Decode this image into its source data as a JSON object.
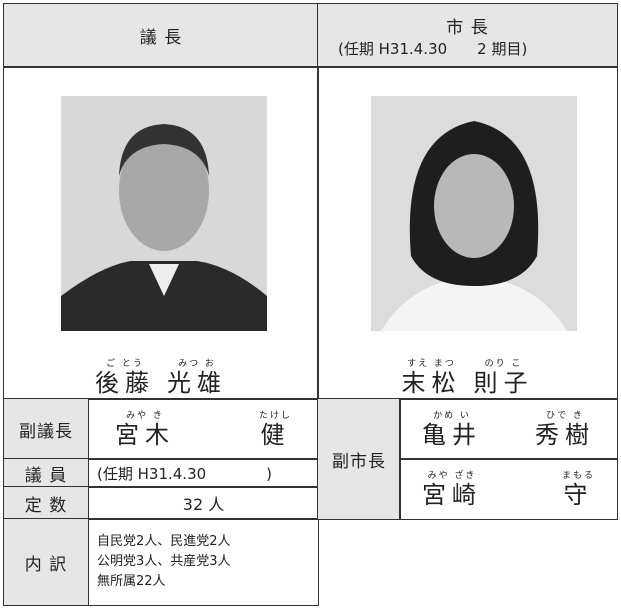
{
  "header": {
    "left": "議 長",
    "right_title": "市 長",
    "right_term": "(任期 H31.4.30　　2 期目)"
  },
  "chair": {
    "family": {
      "text": "後藤",
      "reading": "ご とう"
    },
    "given": {
      "text": "光雄",
      "reading": "みつ お"
    }
  },
  "mayor": {
    "family": {
      "text": "末松",
      "reading": "すえ まつ"
    },
    "given": {
      "text": "則子",
      "reading": "のり こ"
    }
  },
  "vice_chair": {
    "label": "副議長",
    "family": {
      "text": "宮木",
      "reading": "みや き"
    },
    "given": {
      "text": "健",
      "reading": "たけし"
    }
  },
  "members": {
    "label": "議 員",
    "term": "(任期 H31.4.30　　　　)"
  },
  "seats": {
    "label": "定 数",
    "value": "32 人"
  },
  "breakdown": {
    "label": "内 訳",
    "lines": [
      "自民党2人、民進党2人",
      "公明党3人、共産党3人",
      "無所属22人"
    ]
  },
  "vice_mayors": {
    "label": "副市長",
    "people": [
      {
        "family": {
          "text": "亀井",
          "reading": "かめ い"
        },
        "given": {
          "text": "秀樹",
          "reading": "ひで き"
        }
      },
      {
        "family": {
          "text": "宮崎",
          "reading": "みや ざき"
        },
        "given": {
          "text": "守",
          "reading": "まもる"
        }
      }
    ]
  }
}
